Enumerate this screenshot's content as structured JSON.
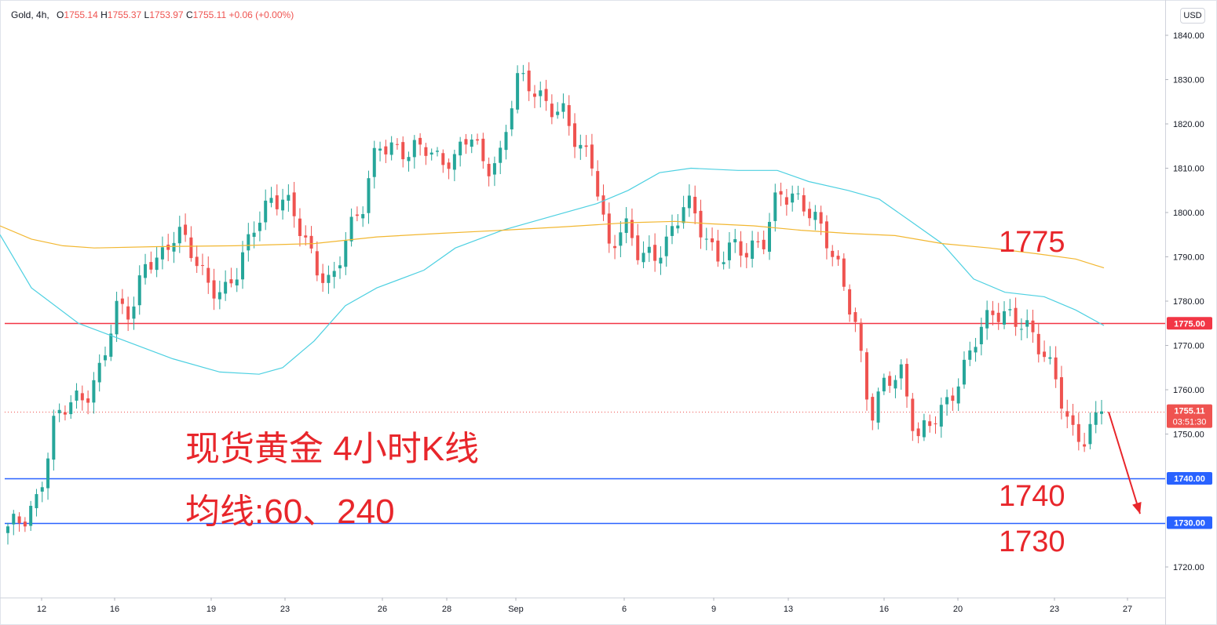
{
  "legend": {
    "symbol": "Gold, 4h,",
    "open_label": "O",
    "open": "1755.14",
    "high_label": "H",
    "high": "1755.37",
    "low_label": "L",
    "low": "1753.97",
    "close_label": "C",
    "close": "1755.11",
    "change": "+0.06 (+0.00%)"
  },
  "currency_button": "USD",
  "annotations": {
    "title": "现货黄金 4小时K线",
    "subtitle": "均线:60、240",
    "level_1775": "1775",
    "level_1740": "1740",
    "level_1730": "1730"
  },
  "colors": {
    "up": "#26a69a",
    "down": "#ef5350",
    "ma60": "#4dd0e1",
    "ma240": "#f2b731",
    "resistance_line": "#f23645",
    "support_line": "#2962ff",
    "annotation": "#e8262b"
  },
  "chart_data": {
    "type": "candlestick",
    "symbol": "Gold",
    "timeframe": "4h",
    "y_axis": {
      "ylim": [
        1714,
        1846
      ],
      "ticks": [
        "1840.00",
        "1830.00",
        "1820.00",
        "1810.00",
        "1800.00",
        "1790.00",
        "1780.00",
        "1770.00",
        "1760.00",
        "1750.00",
        "1720.00"
      ]
    },
    "x_axis": {
      "ticks": [
        "12",
        "16",
        "19",
        "23",
        "26",
        "28",
        "Sep",
        "6",
        "9",
        "13",
        "16",
        "20",
        "23",
        "27"
      ]
    },
    "price_labels": [
      {
        "text": "1775.00",
        "value": 1775,
        "color": "#f23645"
      },
      {
        "text": "1755.11",
        "sub": "03:51:30",
        "value": 1755.11,
        "color": "#ef5350"
      },
      {
        "text": "1740.00",
        "value": 1740,
        "color": "#2962ff"
      },
      {
        "text": "1730.00",
        "value": 1730,
        "color": "#2962ff"
      }
    ],
    "horizontal_lines": [
      {
        "value": 1775,
        "color": "#f23645"
      },
      {
        "value": 1740,
        "color": "#2962ff"
      },
      {
        "value": 1730,
        "color": "#2962ff"
      }
    ],
    "current_price": 1755.11,
    "key_points": [
      1728,
      1730,
      1737,
      1753,
      1756,
      1758,
      1766,
      1778,
      1776,
      1790,
      1791,
      1795,
      1790,
      1785,
      1782,
      1786,
      1797,
      1804,
      1803,
      1795,
      1788,
      1785,
      1794,
      1800,
      1817,
      1815,
      1812,
      1815,
      1813,
      1812,
      1817,
      1810,
      1814,
      1830,
      1827,
      1825,
      1824,
      1814,
      1810,
      1793,
      1798,
      1789,
      1790,
      1796,
      1803,
      1795,
      1790,
      1794,
      1790,
      1792,
      1806,
      1804,
      1799,
      1795,
      1788,
      1775,
      1752,
      1763,
      1765,
      1748,
      1752,
      1758,
      1765,
      1772,
      1777,
      1778,
      1775,
      1768,
      1763,
      1752,
      1748,
      1755.11
    ],
    "series": [
      {
        "name": "MA60",
        "type": "line",
        "color": "#4dd0e1",
        "points": [
          [
            0,
            1795
          ],
          [
            40,
            1783
          ],
          [
            100,
            1775
          ],
          [
            160,
            1771
          ],
          [
            220,
            1767
          ],
          [
            280,
            1764
          ],
          [
            330,
            1763.5
          ],
          [
            360,
            1765
          ],
          [
            400,
            1771
          ],
          [
            440,
            1779
          ],
          [
            480,
            1783
          ],
          [
            540,
            1787
          ],
          [
            580,
            1792
          ],
          [
            640,
            1796
          ],
          [
            700,
            1799
          ],
          [
            760,
            1802
          ],
          [
            800,
            1805
          ],
          [
            840,
            1809
          ],
          [
            880,
            1810
          ],
          [
            940,
            1809.5
          ],
          [
            990,
            1809.5
          ],
          [
            1030,
            1807
          ],
          [
            1080,
            1805
          ],
          [
            1120,
            1803
          ],
          [
            1160,
            1798
          ],
          [
            1200,
            1793
          ],
          [
            1240,
            1785
          ],
          [
            1280,
            1782
          ],
          [
            1330,
            1781
          ],
          [
            1370,
            1778
          ],
          [
            1406,
            1774.5
          ]
        ]
      },
      {
        "name": "MA240",
        "type": "line",
        "color": "#f2b731",
        "points": [
          [
            0,
            1797
          ],
          [
            40,
            1794
          ],
          [
            80,
            1792.5
          ],
          [
            120,
            1792
          ],
          [
            200,
            1792.3
          ],
          [
            300,
            1792.5
          ],
          [
            400,
            1793
          ],
          [
            480,
            1794.5
          ],
          [
            560,
            1795.3
          ],
          [
            640,
            1796
          ],
          [
            720,
            1796.8
          ],
          [
            800,
            1797.7
          ],
          [
            860,
            1798
          ],
          [
            900,
            1797.5
          ],
          [
            960,
            1797
          ],
          [
            1020,
            1796
          ],
          [
            1080,
            1795.3
          ],
          [
            1140,
            1794.8
          ],
          [
            1200,
            1793
          ],
          [
            1260,
            1792
          ],
          [
            1320,
            1790.7
          ],
          [
            1370,
            1789.5
          ],
          [
            1406,
            1787.5
          ]
        ]
      }
    ],
    "projection_arrow": {
      "from": [
        1412,
        1755
      ],
      "to": [
        1452,
        1732
      ],
      "color": "#e8262b"
    }
  }
}
